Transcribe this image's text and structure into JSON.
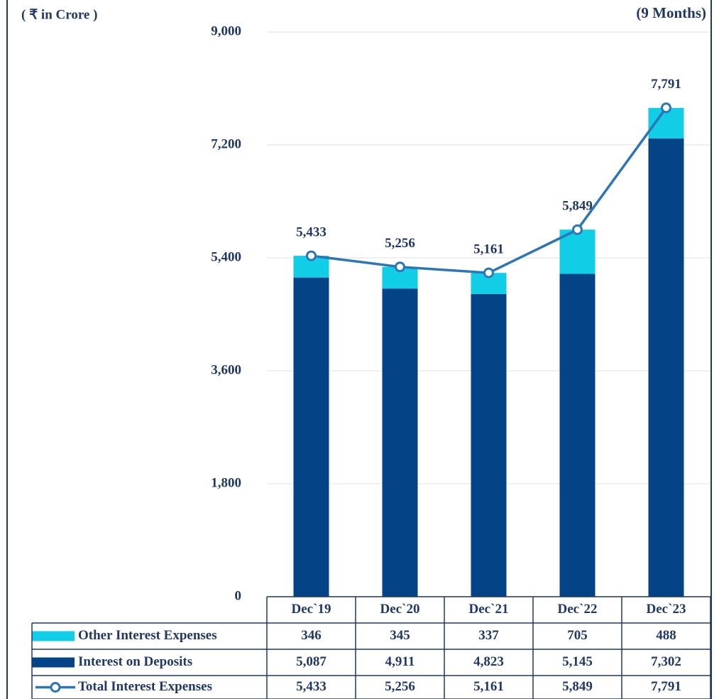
{
  "chart_data": {
    "type": "bar",
    "stacked": true,
    "unit_label": "( ₹ in Crore )",
    "annotation": "(9 Months)",
    "categories": [
      "Dec`19",
      "Dec`20",
      "Dec`21",
      "Dec`22",
      "Dec`23"
    ],
    "series": [
      {
        "name": "Other Interest Expenses",
        "type": "bar",
        "color": "#12cde6",
        "values": [
          346,
          345,
          337,
          705,
          488
        ],
        "value_labels": [
          "346",
          "345",
          "337",
          "705",
          "488"
        ]
      },
      {
        "name": "Interest on Deposits",
        "type": "bar",
        "color": "#054387",
        "values": [
          5087,
          4911,
          4823,
          5145,
          7302
        ],
        "value_labels": [
          "5,087",
          "4,911",
          "4,823",
          "5,145",
          "7,302"
        ]
      },
      {
        "name": "Total Interest Expenses",
        "type": "line",
        "color": "#2e75b6",
        "values": [
          5433,
          5256,
          5161,
          5849,
          7791
        ],
        "value_labels": [
          "5,433",
          "5,256",
          "5,161",
          "5,849",
          "7,791"
        ]
      }
    ],
    "ylim": [
      0,
      9000
    ],
    "yticks": [
      0,
      {
        "value": 1800,
        "label": "1,800"
      },
      {
        "value": 3600,
        "label": "3,600"
      },
      {
        "value": 5400,
        "label": "5,400"
      },
      {
        "value": 7200,
        "label": "7,200"
      },
      {
        "value": 9000,
        "label": "9,000"
      }
    ],
    "grid": true
  }
}
